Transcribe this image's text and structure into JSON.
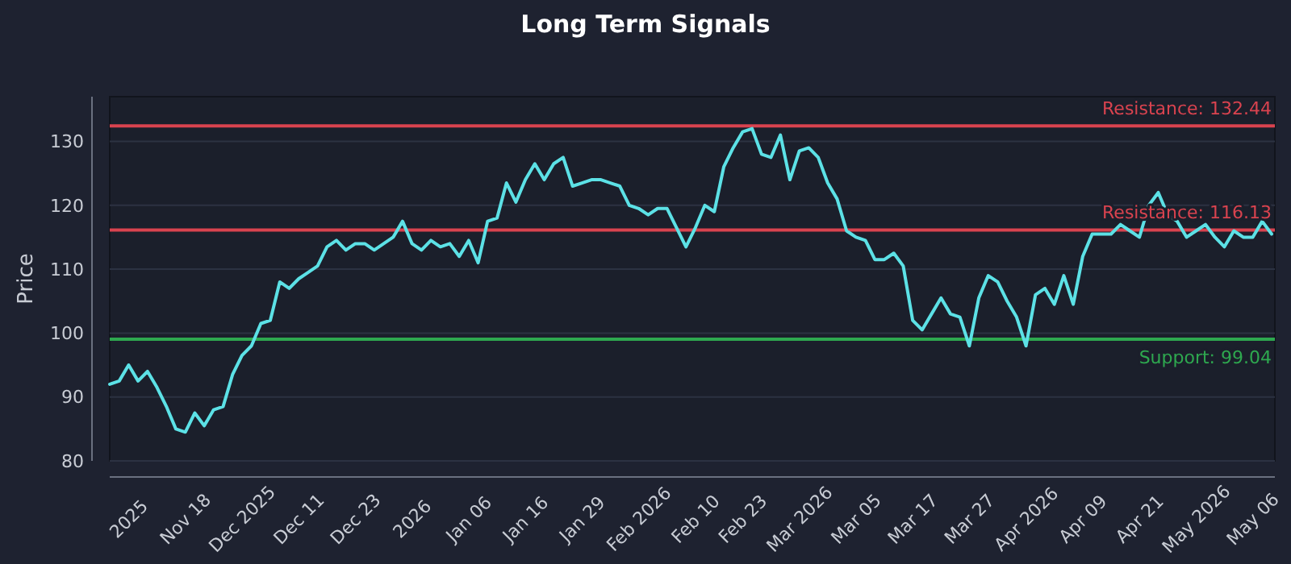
{
  "chart_data": {
    "type": "line",
    "title": "Long Term Signals",
    "ylabel": "Price",
    "categories": [
      null,
      null,
      "2025",
      null,
      null,
      null,
      null,
      null,
      "Nov 18",
      null,
      null,
      null,
      null,
      null,
      "Dec 2025",
      null,
      null,
      null,
      null,
      null,
      "Dec 11",
      null,
      null,
      null,
      null,
      null,
      "Dec 23",
      null,
      null,
      null,
      null,
      null,
      "2026",
      null,
      null,
      null,
      null,
      null,
      "Jan 06",
      null,
      null,
      null,
      null,
      null,
      "Jan 16",
      null,
      null,
      null,
      null,
      null,
      "Jan 29",
      null,
      null,
      null,
      null,
      null,
      "Feb 2026",
      null,
      null,
      null,
      null,
      null,
      "Feb 10",
      null,
      null,
      null,
      null,
      "Feb 23",
      null,
      null,
      null,
      null,
      null,
      "Mar 2026",
      null,
      null,
      null,
      null,
      null,
      "Mar 05",
      null,
      null,
      null,
      null,
      null,
      "Mar 17",
      null,
      null,
      null,
      null,
      null,
      "Mar 27",
      null,
      null,
      null,
      null,
      null,
      "Apr 2026",
      null,
      null,
      null,
      null,
      null,
      "Apr 09",
      null,
      null,
      null,
      null,
      null,
      "Apr 21",
      null,
      null,
      null,
      null,
      null,
      "May 2026",
      null,
      null,
      null,
      null,
      null,
      "May 06",
      null,
      null
    ],
    "ylim": [
      80,
      137
    ],
    "yticks": [
      80,
      90,
      100,
      110,
      120,
      130
    ],
    "grid": "y",
    "marker": "none",
    "line_style": "solid",
    "series": [
      {
        "color": "#5ce1e6",
        "values": [
          92,
          92.5,
          95,
          92.5,
          94,
          91.5,
          88.5,
          85,
          84.5,
          87.5,
          85.5,
          88,
          88.5,
          93.5,
          96.5,
          98,
          101.5,
          102,
          108,
          107,
          108.5,
          109.5,
          110.5,
          113.5,
          114.5,
          113,
          114,
          114,
          113,
          114,
          115,
          117.5,
          114,
          113,
          114.5,
          113.5,
          114,
          112,
          114.5,
          111,
          117.5,
          118,
          123.5,
          120.5,
          124,
          126.5,
          124,
          126.5,
          127.5,
          123,
          123.5,
          124,
          124,
          123.5,
          123,
          120,
          119.5,
          118.5,
          119.5,
          119.5,
          116.5,
          113.5,
          116.5,
          120,
          119,
          126,
          129,
          131.5,
          132,
          128,
          127.5,
          131,
          124,
          128.5,
          129,
          127.5,
          123.5,
          121,
          116,
          115,
          114.5,
          111.5,
          111.5,
          112.5,
          110.5,
          102,
          100.5,
          103,
          105.5,
          103,
          102.5,
          98,
          105.5,
          109,
          108,
          105,
          102.5,
          98,
          106,
          107,
          104.5,
          109,
          104.5,
          112,
          115.5,
          115.5,
          115.5,
          117,
          116,
          115,
          120,
          122,
          118.5,
          117.5,
          115,
          116,
          117,
          115,
          113.5,
          116,
          115,
          115,
          117.5,
          115.5
        ]
      }
    ],
    "ref_lines": [
      {
        "axis": "y",
        "value": 132.44,
        "label": "Resistance: 132.44",
        "color": "#d9434f"
      },
      {
        "axis": "y",
        "value": 116.13,
        "label": "Resistance: 116.13",
        "color": "#d9434f"
      },
      {
        "axis": "y",
        "value": 99.04,
        "label": "Support: 99.04",
        "color": "#2ea84f"
      }
    ]
  }
}
